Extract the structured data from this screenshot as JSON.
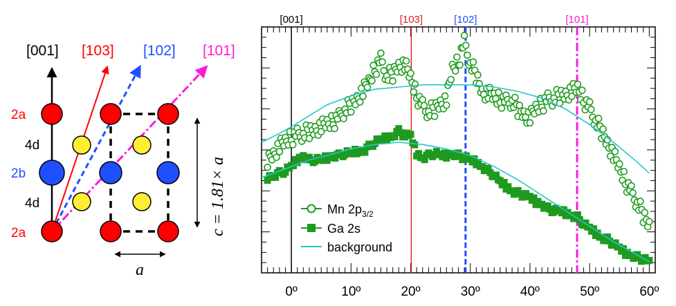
{
  "crystal_diagram": {
    "directions": [
      {
        "label": "[001]",
        "color": "#000000"
      },
      {
        "label": "[103]",
        "color": "#ff0000"
      },
      {
        "label": "[102]",
        "color": "#1f4fff"
      },
      {
        "label": "[101]",
        "color": "#ff19d6"
      }
    ],
    "sites": {
      "top": "2a",
      "upper_mid": "4d",
      "center": "2b",
      "lower_mid": "4d",
      "bottom": "2a"
    },
    "site_colors": {
      "2a": "#ff0000",
      "2b": "#1f4fff",
      "4d": "#000000"
    },
    "atom_colors": {
      "red": "#ff0000",
      "blue": "#1f4fff",
      "yellow": "#ffee33"
    },
    "c_formula": "c = 1.81× a",
    "a_label": "a"
  },
  "chart_data": {
    "type": "line",
    "xlim": [
      -5,
      61
    ],
    "x_ticks": [
      0,
      10,
      20,
      30,
      40,
      50,
      60
    ],
    "x_tick_labels": [
      "0º",
      "10º",
      "20º",
      "30º",
      "40º",
      "50º",
      "60º"
    ],
    "title": "",
    "xlabel": "",
    "ylabel": "",
    "y_ticks_unlabeled": true,
    "direction_markers": [
      {
        "label": "[001]",
        "x": 0,
        "color": "#000000",
        "style": "solid"
      },
      {
        "label": "[103]",
        "x": 20.1,
        "color": "#e02020",
        "style": "solid"
      },
      {
        "label": "[102]",
        "x": 29.2,
        "color": "#1f4fff",
        "style": "dashed"
      },
      {
        "label": "[101]",
        "x": 47.9,
        "color": "#ff19d6",
        "style": "dashdot"
      }
    ],
    "legend_position": "bottom-left",
    "series": [
      {
        "name": "Mn 2p3/2",
        "label_main": "Mn 2p",
        "label_sub": "3/2",
        "color": "#1f9a1f",
        "marker": "open-circle",
        "x": [
          -4,
          -3,
          -2,
          -1,
          0,
          1,
          2,
          3,
          4,
          5,
          6,
          7,
          8,
          9,
          10,
          11,
          12,
          13,
          14,
          15,
          16,
          17,
          18,
          19,
          20,
          21,
          22,
          23,
          24,
          25,
          26,
          27,
          28,
          29,
          30,
          31,
          32,
          33,
          34,
          35,
          36,
          37,
          38,
          39,
          40,
          41,
          42,
          43,
          44,
          45,
          46,
          47,
          48,
          49,
          50,
          51,
          52,
          53,
          54,
          55,
          56,
          57,
          58,
          59,
          60
        ],
        "y": [
          0.47,
          0.5,
          0.53,
          0.55,
          0.57,
          0.58,
          0.59,
          0.6,
          0.61,
          0.62,
          0.63,
          0.64,
          0.66,
          0.7,
          0.72,
          0.75,
          0.78,
          0.82,
          0.88,
          0.92,
          0.85,
          0.86,
          0.9,
          0.9,
          0.84,
          0.76,
          0.71,
          0.69,
          0.7,
          0.73,
          0.74,
          0.88,
          0.91,
          1.0,
          0.91,
          0.85,
          0.78,
          0.77,
          0.75,
          0.74,
          0.73,
          0.74,
          0.7,
          0.68,
          0.66,
          0.7,
          0.72,
          0.74,
          0.75,
          0.76,
          0.77,
          0.78,
          0.79,
          0.74,
          0.7,
          0.65,
          0.6,
          0.55,
          0.49,
          0.43,
          0.37,
          0.32,
          0.28,
          0.22,
          0.18
        ]
      },
      {
        "name": "Ga 2s",
        "label_main": "Ga 2s",
        "color": "#1f9a1f",
        "marker": "filled-square",
        "x": [
          -4,
          -3,
          -2,
          -1,
          0,
          1,
          2,
          3,
          4,
          5,
          6,
          7,
          8,
          9,
          10,
          11,
          12,
          13,
          14,
          15,
          16,
          17,
          18,
          19,
          20,
          21,
          22,
          23,
          24,
          25,
          26,
          27,
          28,
          29,
          30,
          31,
          32,
          33,
          34,
          35,
          36,
          37,
          38,
          39,
          40,
          41,
          42,
          43,
          44,
          45,
          46,
          47,
          48,
          49,
          50,
          51,
          52,
          53,
          54,
          55,
          56,
          57,
          58,
          59,
          60
        ],
        "y": [
          0.39,
          0.4,
          0.41,
          0.42,
          0.44,
          0.47,
          0.49,
          0.47,
          0.47,
          0.47,
          0.48,
          0.49,
          0.49,
          0.5,
          0.5,
          0.51,
          0.51,
          0.53,
          0.55,
          0.56,
          0.57,
          0.58,
          0.6,
          0.58,
          0.58,
          0.5,
          0.48,
          0.49,
          0.5,
          0.49,
          0.49,
          0.5,
          0.49,
          0.48,
          0.47,
          0.46,
          0.44,
          0.42,
          0.4,
          0.37,
          0.35,
          0.33,
          0.32,
          0.31,
          0.3,
          0.28,
          0.27,
          0.25,
          0.24,
          0.24,
          0.23,
          0.22,
          0.21,
          0.18,
          0.16,
          0.14,
          0.12,
          0.11,
          0.09,
          0.07,
          0.05,
          0.04,
          0.03,
          0.02,
          0.01
        ]
      },
      {
        "name": "background",
        "color": "#22c7cf",
        "marker": "line",
        "x": [
          -5,
          -2,
          0,
          3,
          6,
          10,
          14,
          18,
          22,
          26,
          30,
          34,
          38,
          42,
          46,
          50,
          54,
          58,
          60
        ],
        "y": [
          0.55,
          0.59,
          0.62,
          0.67,
          0.72,
          0.76,
          0.79,
          0.8,
          0.81,
          0.81,
          0.81,
          0.8,
          0.78,
          0.75,
          0.7,
          0.63,
          0.55,
          0.46,
          0.41
        ],
        "bg_lower_x": [
          -5,
          -2,
          0,
          3,
          6,
          10,
          14,
          18,
          22,
          26,
          30,
          34,
          38,
          42,
          46,
          50,
          54,
          58,
          60
        ],
        "bg_lower_y": [
          0.39,
          0.42,
          0.44,
          0.47,
          0.49,
          0.52,
          0.54,
          0.55,
          0.54,
          0.52,
          0.49,
          0.44,
          0.38,
          0.31,
          0.24,
          0.17,
          0.1,
          0.04,
          0.01
        ]
      }
    ],
    "legend": [
      {
        "main": "Mn 2p",
        "sub": "3/2",
        "marker": "open-circle"
      },
      {
        "main": "Ga 2s",
        "sub": "",
        "marker": "filled-square"
      },
      {
        "main": "background",
        "sub": "",
        "marker": "line"
      }
    ]
  }
}
